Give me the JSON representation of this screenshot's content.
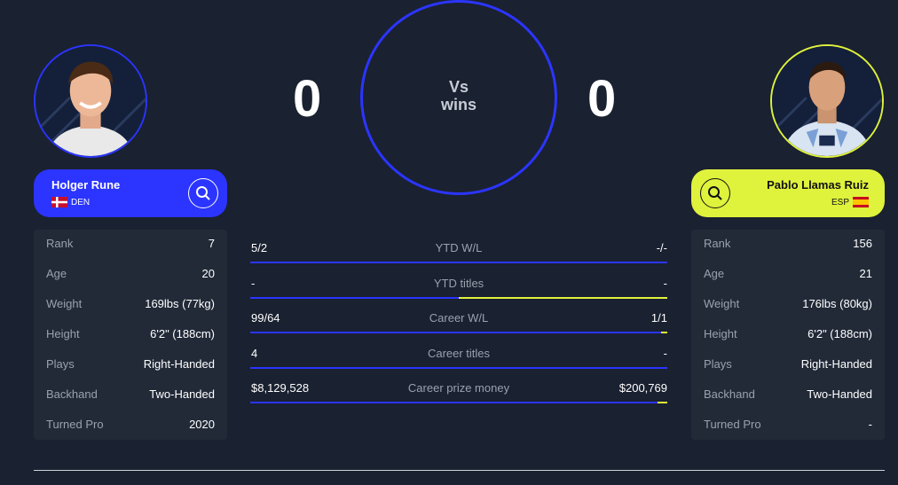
{
  "players": {
    "left": {
      "name": "Holger Rune",
      "country": "DEN",
      "score": "0",
      "stats": [
        {
          "label": "Rank",
          "value": "7"
        },
        {
          "label": "Age",
          "value": "20"
        },
        {
          "label": "Weight",
          "value": "169lbs (77kg)"
        },
        {
          "label": "Height",
          "value": "6'2\" (188cm)"
        },
        {
          "label": "Plays",
          "value": "Right-Handed"
        },
        {
          "label": "Backhand",
          "value": "Two-Handed"
        },
        {
          "label": "Turned Pro",
          "value": "2020"
        }
      ]
    },
    "right": {
      "name": "Pablo Llamas Ruiz",
      "country": "ESP",
      "score": "0",
      "stats": [
        {
          "label": "Rank",
          "value": "156"
        },
        {
          "label": "Age",
          "value": "21"
        },
        {
          "label": "Weight",
          "value": "176lbs (80kg)"
        },
        {
          "label": "Height",
          "value": "6'2\" (188cm)"
        },
        {
          "label": "Plays",
          "value": "Right-Handed"
        },
        {
          "label": "Backhand",
          "value": "Two-Handed"
        },
        {
          "label": "Turned Pro",
          "value": "-"
        }
      ]
    }
  },
  "vs": {
    "line1": "Vs",
    "line2": "wins"
  },
  "comparison": [
    {
      "left": "5/2",
      "label": "YTD W/L",
      "right": "-/-"
    },
    {
      "left": "-",
      "label": "YTD titles",
      "right": "-"
    },
    {
      "left": "99/64",
      "label": "Career W/L",
      "right": "1/1"
    },
    {
      "left": "4",
      "label": "Career titles",
      "right": "-"
    },
    {
      "left": "$8,129,528",
      "label": "Career prize money",
      "right": "$200,769"
    }
  ],
  "comparison_share": [
    1.0,
    0.5,
    0.985,
    1.0,
    0.976
  ],
  "colors": {
    "left_accent": "#2b35ff",
    "right_accent": "#dff23c",
    "background": "#1a2130",
    "panel": "#222a38"
  },
  "icons": {
    "search": "search-icon"
  }
}
